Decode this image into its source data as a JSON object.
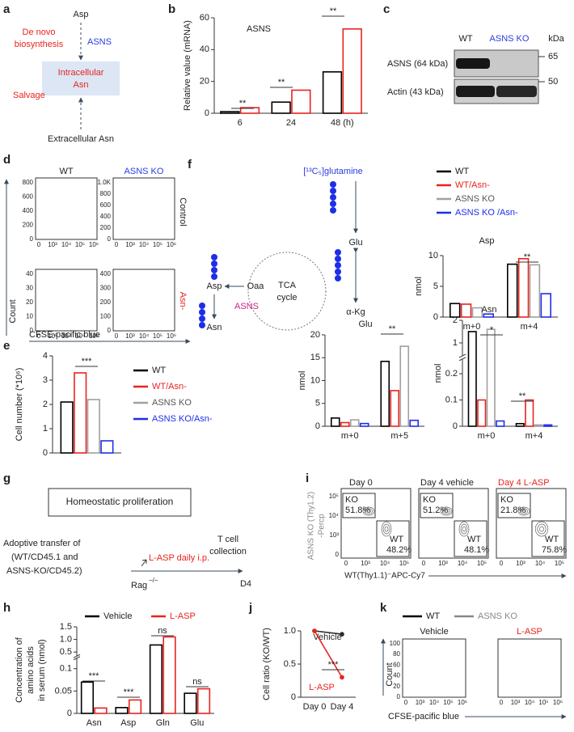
{
  "panel_labels": [
    "a",
    "b",
    "c",
    "d",
    "e",
    "f",
    "g",
    "h",
    "i",
    "j",
    "k"
  ],
  "diagram_a": {
    "top": "Asp",
    "enzyme": "ASNS",
    "de_novo": [
      "De novo",
      "biosynthesis"
    ],
    "box": [
      "Intracellular",
      "Asn"
    ],
    "salvage": "Salvage",
    "bottom": "Extracellular Asn"
  },
  "blot_c": {
    "lanes": [
      "WT",
      "ASNS KO"
    ],
    "unit": "kDa",
    "rows": [
      "ASNS (64 kDa)",
      "Actin (43 kDa)"
    ],
    "markers": [
      "65",
      "50"
    ]
  },
  "histograms_d": {
    "columns": [
      "WT",
      "ASNS KO"
    ],
    "rows": [
      "Control",
      "Asn-"
    ],
    "y_label": "Count",
    "x_label": "CFSE-pacific blue",
    "yticks": [
      [
        "0",
        "200",
        "400",
        "600",
        "800"
      ],
      [
        "0",
        "200",
        "400",
        "600",
        "800",
        "1.0K"
      ],
      [
        "0",
        "10",
        "20",
        "30",
        "40"
      ],
      [
        "0",
        "100",
        "200",
        "300",
        "400"
      ]
    ],
    "xticks": [
      "0",
      "10³",
      "10⁴",
      "10⁵",
      "10⁶"
    ]
  },
  "pathway_f": {
    "tracer": "[¹³C₅]glutamine",
    "glu": "Glu",
    "akg": "α-Kg",
    "oaa": "Oaa",
    "asp": "Asp",
    "asn": "Asn",
    "enzyme": "ASNS",
    "cycle": [
      "TCA",
      "cycle"
    ]
  },
  "diagram_g": {
    "box": "Homeostatic proliferation",
    "transfer": [
      "Adoptive transfer of",
      "(WT/CD45.1 and",
      "ASNS-KO/CD45.2)"
    ],
    "treatment": "L-ASP daily i.p.",
    "host": "Rag",
    "host_genotype": "−/−",
    "collection": [
      "T cell",
      "collection"
    ],
    "day": "D4"
  },
  "flow_i": {
    "titles": [
      "Day 0",
      "Day 4 vehicle",
      "Day 4 L-ASP"
    ],
    "ko_gate": "KO",
    "wt_gate": "WT",
    "ko": [
      "51.8%",
      "51.2%",
      "21.8%"
    ],
    "wt": [
      "48.2%",
      "48.1%",
      "75.8%"
    ],
    "y_label": [
      "ASNS KO (Thy1.2)",
      "-Percp"
    ],
    "x_label": "WT(Thy1.1)⁻APC-Cy7",
    "yticks": [
      "0",
      "10³",
      "10⁴",
      "10⁵"
    ],
    "xticks": [
      "0",
      "10³",
      "10⁴",
      "10⁵"
    ]
  },
  "histograms_k": {
    "legend": [
      "WT",
      "ASNS KO"
    ],
    "titles": [
      "Vehicle",
      "L-ASP"
    ],
    "y_label": "Count",
    "x_label": "CFSE-pacific blue",
    "yticks": [
      "0",
      "20",
      "40",
      "60",
      "80",
      "100"
    ],
    "xticks": [
      "0",
      "10³",
      "10⁴",
      "10⁵",
      "10⁶"
    ]
  },
  "chart_data": [
    {
      "type": "bar",
      "title": "ASNS",
      "y_label": "Relative value (mRNA)",
      "categories": [
        "6",
        "24",
        "48 (h)"
      ],
      "series": [
        {
          "color": "#000000",
          "values": [
            1,
            7,
            26
          ]
        },
        {
          "color": "#e8231e",
          "values": [
            3.5,
            14.5,
            53
          ]
        }
      ],
      "ylim": [
        0,
        60
      ],
      "yticks": [
        0,
        20,
        40,
        60
      ],
      "annotations": [
        "**",
        "**",
        "**"
      ]
    },
    {
      "type": "bar",
      "y_label": "Cell number (*10⁶)",
      "categories": [
        null
      ],
      "series": [
        {
          "name": "WT",
          "color": "#000000",
          "values": [
            2.1
          ]
        },
        {
          "name": "WT/Asn-",
          "color": "#e8231e",
          "values": [
            3.3
          ]
        },
        {
          "name": "ASNS KO",
          "color": "#a0a0a0",
          "values": [
            2.2
          ]
        },
        {
          "name": "ASNS KO/Asn-",
          "color": "#1f2ee6",
          "values": [
            0.5
          ]
        }
      ],
      "ylim": [
        0,
        4
      ],
      "yticks": [
        0,
        1,
        2,
        3,
        4
      ],
      "annotations": [
        "***"
      ]
    },
    {
      "type": "bar",
      "title": "Asp",
      "y_label": "nmol",
      "categories": [
        "m+0",
        "m+4"
      ],
      "series": [
        {
          "name": "WT",
          "color": "#000000",
          "values": [
            2.2,
            8.6
          ]
        },
        {
          "name": "WT/Asn-",
          "color": "#e8231e",
          "values": [
            2.1,
            9.5
          ]
        },
        {
          "name": "ASNS KO",
          "color": "#a0a0a0",
          "values": [
            1.5,
            8.5
          ]
        },
        {
          "name": "ASNS KO /Asn-",
          "color": "#1f2ee6",
          "values": [
            0.5,
            3.8
          ]
        }
      ],
      "ylim": [
        0,
        10
      ],
      "yticks": [
        0,
        5,
        10
      ],
      "annotations": [
        "**"
      ]
    },
    {
      "type": "bar",
      "title": "Glu",
      "y_label": "nmol",
      "categories": [
        "m+0",
        "m+5"
      ],
      "series": [
        {
          "color": "#000000",
          "values": [
            1.8,
            14.2
          ]
        },
        {
          "color": "#e8231e",
          "values": [
            0.8,
            7.8
          ]
        },
        {
          "color": "#a0a0a0",
          "values": [
            1.4,
            17.5
          ]
        },
        {
          "color": "#1f2ee6",
          "values": [
            0.6,
            1.3
          ]
        }
      ],
      "ylim": [
        0,
        20
      ],
      "yticks": [
        0,
        5,
        10,
        15,
        20
      ],
      "annotations": [
        "**"
      ]
    },
    {
      "type": "bar",
      "title": "Asn",
      "y_label": "nmol",
      "categories": [
        "m+0",
        "m+4"
      ],
      "series": [
        {
          "color": "#000000",
          "values": [
            1.5,
            0.01
          ]
        },
        {
          "color": "#e8231e",
          "values": [
            0.1,
            0.1
          ]
        },
        {
          "color": "#a0a0a0",
          "values": [
            1.6,
            0.005
          ]
        },
        {
          "color": "#1f2ee6",
          "values": [
            0.02,
            0.005
          ]
        }
      ],
      "ylim": [
        0,
        2
      ],
      "ybreak": [
        0.25,
        0.5
      ],
      "yticks": [
        0,
        0.1,
        0.2,
        1,
        2
      ],
      "annotations": [
        "*",
        "**"
      ]
    },
    {
      "type": "bar",
      "y_label": [
        "Concentration of",
        "amino acids",
        "in serum (nmol)"
      ],
      "categories": [
        "Asn",
        "Asp",
        "Gln",
        "Glu"
      ],
      "series": [
        {
          "name": "Vehicle",
          "color": "#000000",
          "values": [
            0.07,
            0.013,
            0.78,
            0.045
          ]
        },
        {
          "name": "L-ASP",
          "color": "#e8231e",
          "values": [
            0.012,
            0.03,
            1.1,
            0.055
          ]
        }
      ],
      "ylim": [
        0,
        1.5
      ],
      "ybreak": [
        0.12,
        0.4
      ],
      "yticks": [
        0,
        0.05,
        0.1,
        0.5,
        {
          "value": 1,
          "label": "1.0"
        },
        1.5
      ],
      "annotations": [
        "***",
        "***",
        "ns",
        "ns"
      ]
    },
    {
      "type": "line",
      "y_label": "Cell ratio (KO/WT)",
      "categories": [
        "Day 0",
        "Day 4"
      ],
      "series": [
        {
          "name": "Vehicle",
          "color": "#2b2b2b",
          "values": [
            1,
            0.95
          ]
        },
        {
          "name": "L-ASP",
          "color": "#e8231e",
          "values": [
            1,
            0.3
          ]
        }
      ],
      "ylim": [
        0,
        1
      ],
      "yticks": [
        0,
        0.5,
        {
          "value": 1,
          "label": "1.0"
        }
      ],
      "annotations": [
        "***"
      ]
    }
  ]
}
